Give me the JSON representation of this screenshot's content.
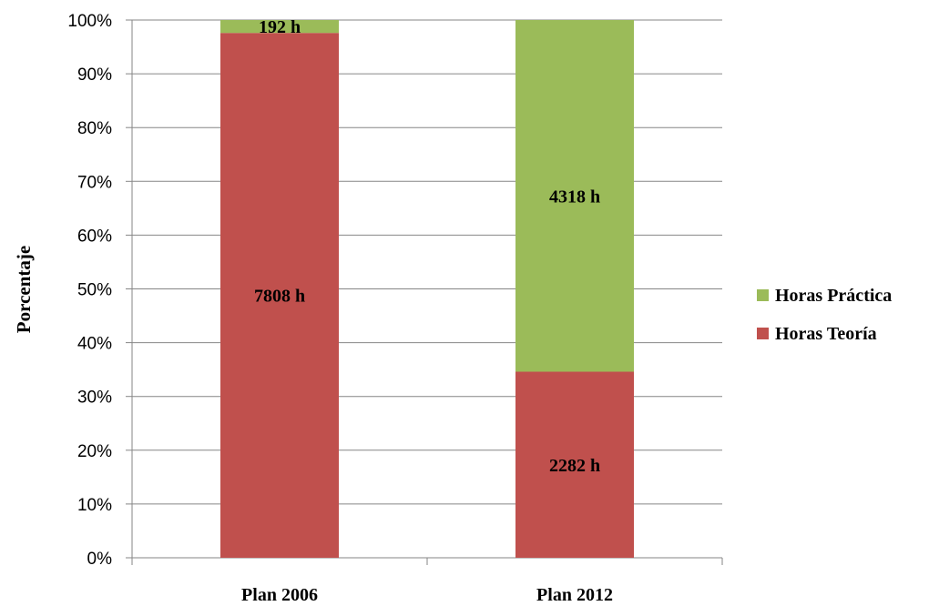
{
  "chart_data": {
    "type": "bar",
    "stacked": true,
    "percent_stacked": true,
    "title": "",
    "xlabel": "",
    "ylabel": "Porcentaje",
    "ylim": [
      0,
      100
    ],
    "y_ticks": [
      "0%",
      "10%",
      "20%",
      "30%",
      "40%",
      "50%",
      "60%",
      "70%",
      "80%",
      "90%",
      "100%"
    ],
    "categories": [
      "Plan 2006",
      "Plan 2012"
    ],
    "series": [
      {
        "name": "Horas Teoría",
        "color": "#c0504d",
        "hours": [
          7808,
          2282
        ],
        "percent": [
          97.6,
          34.6
        ],
        "labels": [
          "7808 h",
          "2282 h"
        ]
      },
      {
        "name": "Horas Práctica",
        "color": "#9bbb59",
        "hours": [
          192,
          4318
        ],
        "percent": [
          2.4,
          65.4
        ],
        "labels": [
          "192 h",
          "4318 h"
        ]
      }
    ],
    "legend": {
      "position": "right",
      "order": [
        "Horas Práctica",
        "Horas Teoría"
      ]
    },
    "grid": true,
    "gridline_color": "#868686"
  }
}
